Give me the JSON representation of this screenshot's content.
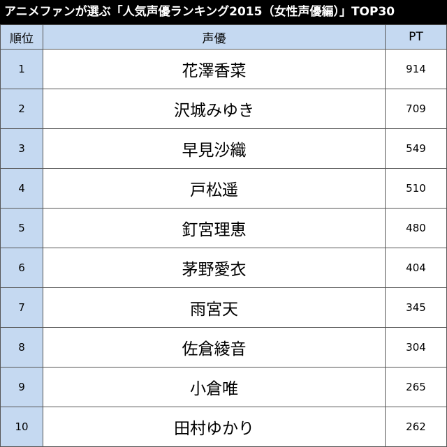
{
  "header": {
    "title": "アニメファンが選ぶ「人気声優ランキング2015（女性声優編）」TOP30"
  },
  "table": {
    "columns": [
      "順位",
      "声優",
      "PT"
    ],
    "rows": [
      [
        1,
        "花澤香菜",
        914
      ],
      [
        2,
        "沢城みゆき",
        709
      ],
      [
        3,
        "早見沙織",
        549
      ],
      [
        4,
        "戸松遥",
        510
      ],
      [
        5,
        "釘宮理恵",
        480
      ],
      [
        6,
        "茅野愛衣",
        404
      ],
      [
        7,
        "雨宮天",
        345
      ],
      [
        8,
        "佐倉綾音",
        304
      ],
      [
        9,
        "小倉唯",
        265
      ],
      [
        10,
        "田村ゆかり",
        262
      ]
    ]
  }
}
